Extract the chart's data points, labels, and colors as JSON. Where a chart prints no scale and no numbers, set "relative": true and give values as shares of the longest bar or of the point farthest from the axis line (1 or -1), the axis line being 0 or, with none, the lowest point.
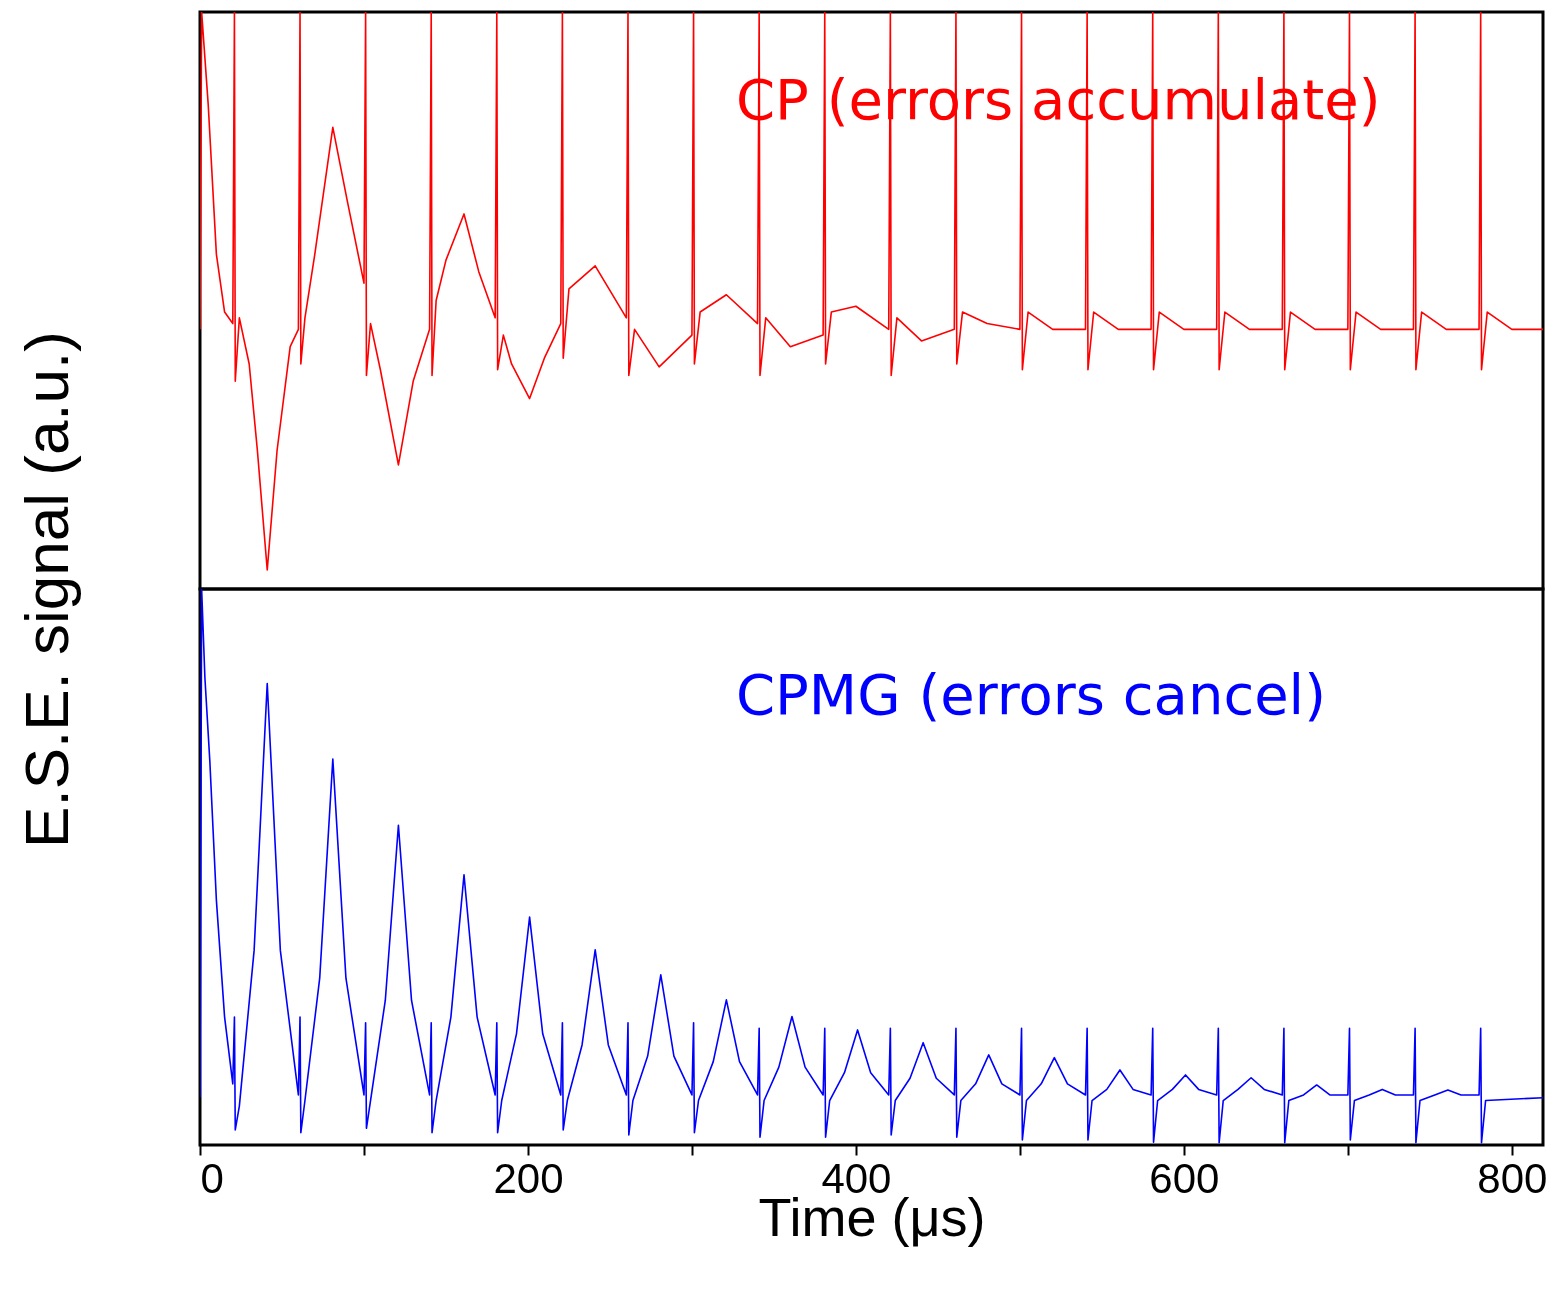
{
  "chart_data": [
    {
      "type": "line",
      "relative": true,
      "ylabel": "E.S.E. signal (a.u.)",
      "xlim": [
        0,
        819
      ],
      "tick_labels": false,
      "legend": false,
      "grid": false,
      "series": [
        {
          "name": "CP (errors accumulate)",
          "color": "#ff0000",
          "x": [
            0,
            1,
            5,
            10,
            15,
            20,
            21,
            21.5,
            24,
            30,
            35,
            41,
            47,
            55,
            60,
            61,
            61.5,
            64,
            70,
            81,
            90,
            100,
            101,
            101.5,
            104,
            110,
            121,
            130,
            140,
            141,
            141.5,
            144,
            150,
            161,
            170,
            180,
            181,
            181.5,
            185,
            190,
            201,
            210,
            220,
            221,
            221.5,
            225,
            241,
            260,
            261,
            261.5,
            265,
            280,
            300,
            301,
            301.5,
            305,
            321,
            340,
            341,
            341.5,
            345,
            360,
            380,
            381,
            381.5,
            385,
            400,
            420,
            421,
            421.5,
            425,
            440,
            460,
            461,
            461.5,
            465,
            480,
            500,
            501,
            501.5,
            505,
            520,
            540,
            541,
            541.5,
            545,
            560,
            580,
            581,
            581.5,
            585,
            600,
            620,
            621,
            621.5,
            625,
            640,
            660,
            661,
            661.5,
            665,
            680,
            700,
            701,
            701.5,
            705,
            720,
            740,
            741,
            741.5,
            745,
            760,
            780,
            781,
            781.5,
            785,
            800,
            819
          ],
          "values": [
            0.45,
            1.0,
            0.84,
            0.58,
            0.48,
            0.46,
            1.0,
            0.36,
            0.47,
            0.39,
            0.24,
            0.033,
            0.24,
            0.42,
            0.45,
            1.0,
            0.39,
            0.47,
            0.58,
            0.8,
            0.67,
            0.53,
            1.0,
            0.37,
            0.46,
            0.38,
            0.215,
            0.36,
            0.45,
            1.0,
            0.37,
            0.5,
            0.57,
            0.65,
            0.55,
            0.47,
            1.0,
            0.38,
            0.44,
            0.39,
            0.33,
            0.4,
            0.46,
            1.0,
            0.4,
            0.52,
            0.56,
            0.47,
            1.0,
            0.37,
            0.45,
            0.385,
            0.44,
            1.0,
            0.39,
            0.48,
            0.51,
            0.46,
            1.0,
            0.37,
            0.47,
            0.42,
            0.44,
            1.0,
            0.39,
            0.48,
            0.49,
            0.45,
            1.0,
            0.37,
            0.47,
            0.43,
            0.45,
            1.0,
            0.39,
            0.48,
            0.46,
            0.45,
            1.0,
            0.38,
            0.48,
            0.45,
            0.45,
            1.0,
            0.38,
            0.48,
            0.45,
            0.45,
            1.0,
            0.38,
            0.48,
            0.45,
            0.45,
            1.0,
            0.38,
            0.48,
            0.45,
            0.45,
            1.0,
            0.38,
            0.48,
            0.45,
            0.45,
            1.0,
            0.38,
            0.48,
            0.45,
            0.45,
            1.0,
            0.38,
            0.48,
            0.45,
            0.45,
            1.0,
            0.38,
            0.48,
            0.45,
            0.45
          ]
        }
      ]
    },
    {
      "type": "line",
      "relative": true,
      "xlabel": "Time (μs)",
      "xlim": [
        0,
        819
      ],
      "xticks": [
        0,
        {
          "value": 100,
          "label": null
        },
        200,
        {
          "value": 300,
          "label": null
        },
        400,
        {
          "value": 500,
          "label": null
        },
        600,
        {
          "value": 700,
          "label": null
        },
        800
      ],
      "tick_labels": "x",
      "legend": false,
      "grid": false,
      "series": [
        {
          "name": "CPMG (errors cancel)",
          "color": "#0000ff",
          "x": [
            0,
            1,
            3,
            6,
            10,
            15,
            20,
            21,
            21.5,
            24,
            33,
            41,
            49,
            60,
            61,
            61.5,
            64,
            73,
            81,
            89,
            100,
            101,
            101.5,
            104,
            113,
            121,
            129,
            140,
            141,
            141.5,
            144,
            153,
            161,
            169,
            180,
            181,
            181.5,
            184,
            193,
            201,
            209,
            220,
            221,
            221.5,
            224,
            233,
            241,
            249,
            260,
            261,
            261.5,
            264,
            273,
            281,
            289,
            300,
            301,
            301.5,
            304,
            313,
            321,
            329,
            340,
            341,
            341.5,
            344,
            353,
            361,
            369,
            380,
            381,
            381.5,
            384,
            393,
            401,
            409,
            420,
            421,
            421.5,
            424,
            433,
            441,
            449,
            460,
            461,
            461.5,
            464,
            473,
            481,
            489,
            500,
            501,
            501.5,
            504,
            513,
            521,
            529,
            540,
            541,
            541.5,
            544,
            553,
            561,
            569,
            580,
            581,
            581.5,
            584,
            593,
            601,
            609,
            620,
            621,
            621.5,
            624,
            633,
            641,
            649,
            660,
            661,
            661.5,
            664,
            673,
            681,
            689,
            700,
            701,
            701.5,
            704,
            713,
            721,
            729,
            740,
            741,
            741.5,
            744,
            753,
            761,
            769,
            780,
            781,
            781.5,
            784,
            819
          ],
          "values": [
            0.086,
            1.0,
            0.84,
            0.69,
            0.44,
            0.23,
            0.11,
            0.23,
            0.027,
            0.07,
            0.35,
            0.83,
            0.35,
            0.09,
            0.23,
            0.022,
            0.08,
            0.3,
            0.694,
            0.3,
            0.09,
            0.22,
            0.03,
            0.08,
            0.26,
            0.575,
            0.26,
            0.09,
            0.22,
            0.022,
            0.08,
            0.23,
            0.486,
            0.23,
            0.09,
            0.22,
            0.022,
            0.08,
            0.2,
            0.41,
            0.2,
            0.09,
            0.22,
            0.027,
            0.08,
            0.18,
            0.351,
            0.18,
            0.09,
            0.22,
            0.018,
            0.08,
            0.16,
            0.306,
            0.16,
            0.09,
            0.22,
            0.022,
            0.08,
            0.15,
            0.261,
            0.15,
            0.09,
            0.21,
            0.014,
            0.08,
            0.14,
            0.231,
            0.14,
            0.09,
            0.21,
            0.014,
            0.08,
            0.13,
            0.207,
            0.13,
            0.09,
            0.21,
            0.018,
            0.08,
            0.12,
            0.184,
            0.12,
            0.09,
            0.21,
            0.014,
            0.08,
            0.11,
            0.162,
            0.11,
            0.09,
            0.21,
            0.009,
            0.08,
            0.11,
            0.157,
            0.11,
            0.09,
            0.21,
            0.009,
            0.08,
            0.1,
            0.135,
            0.1,
            0.09,
            0.21,
            0.005,
            0.08,
            0.1,
            0.126,
            0.1,
            0.09,
            0.21,
            0.004,
            0.08,
            0.1,
            0.121,
            0.1,
            0.09,
            0.21,
            0.004,
            0.08,
            0.09,
            0.108,
            0.09,
            0.09,
            0.21,
            0.009,
            0.08,
            0.09,
            0.1,
            0.09,
            0.09,
            0.21,
            0.004,
            0.08,
            0.09,
            0.099,
            0.09,
            0.09,
            0.21,
            0.004,
            0.08,
            0.085
          ]
        }
      ]
    }
  ]
}
